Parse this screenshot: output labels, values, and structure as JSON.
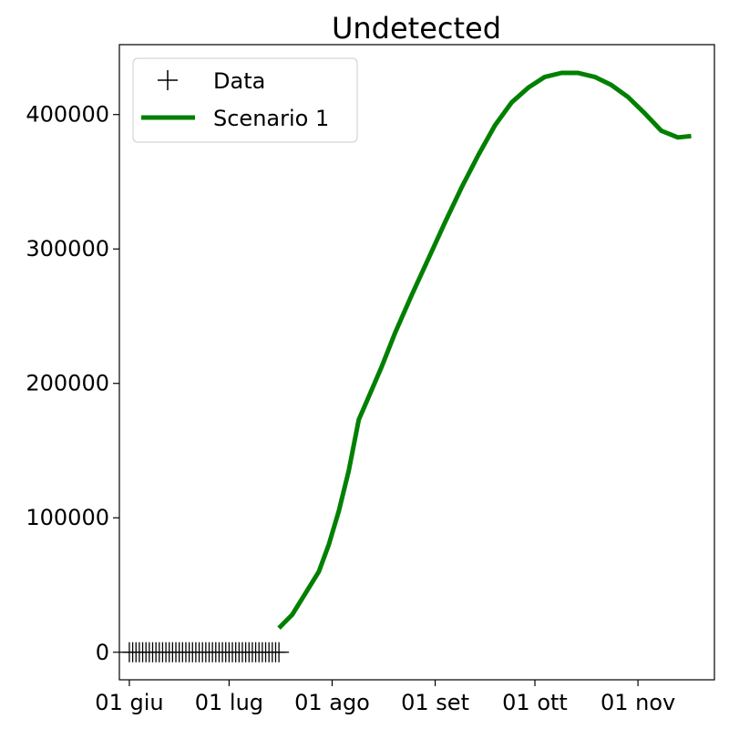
{
  "chart_data": {
    "type": "line",
    "title": "Undetected",
    "xlabel": "",
    "ylabel": "",
    "x_tick_labels": [
      {
        "date": "2020-06-01",
        "label": "01 giu"
      },
      {
        "date": "2020-07-01",
        "label": "01 lug"
      },
      {
        "date": "2020-08-01",
        "label": "01 ago"
      },
      {
        "date": "2020-09-01",
        "label": "01 set"
      },
      {
        "date": "2020-10-01",
        "label": "01 ott"
      },
      {
        "date": "2020-11-01",
        "label": "01 nov"
      }
    ],
    "y_tick_labels": [
      {
        "value": 0,
        "label": "0"
      },
      {
        "value": 100000,
        "label": "100000"
      },
      {
        "value": 200000,
        "label": "200000"
      },
      {
        "value": 300000,
        "label": "300000"
      },
      {
        "value": 400000,
        "label": "400000"
      }
    ],
    "xlim": [
      "2020-05-29",
      "2020-11-24"
    ],
    "ylim": [
      -20500,
      452000
    ],
    "grid": false,
    "legend_position": "top-left",
    "series": [
      {
        "name": "Data",
        "style": "marker-plus",
        "color": "#000000",
        "x": [
          "2020-06-01",
          "2020-06-02",
          "2020-06-03",
          "2020-06-04",
          "2020-06-05",
          "2020-06-06",
          "2020-06-07",
          "2020-06-08",
          "2020-06-09",
          "2020-06-10",
          "2020-06-11",
          "2020-06-12",
          "2020-06-13",
          "2020-06-14",
          "2020-06-15",
          "2020-06-16",
          "2020-06-17",
          "2020-06-18",
          "2020-06-19",
          "2020-06-20",
          "2020-06-21",
          "2020-06-22",
          "2020-06-23",
          "2020-06-24",
          "2020-06-25",
          "2020-06-26",
          "2020-06-27",
          "2020-06-28",
          "2020-06-29",
          "2020-06-30",
          "2020-07-01",
          "2020-07-02",
          "2020-07-03",
          "2020-07-04",
          "2020-07-05",
          "2020-07-06",
          "2020-07-07",
          "2020-07-08",
          "2020-07-09",
          "2020-07-10",
          "2020-07-11",
          "2020-07-12",
          "2020-07-13",
          "2020-07-14",
          "2020-07-15",
          "2020-07-16"
        ],
        "y": [
          0,
          0,
          0,
          0,
          0,
          0,
          0,
          0,
          0,
          0,
          0,
          0,
          0,
          0,
          0,
          0,
          0,
          0,
          0,
          0,
          0,
          0,
          0,
          0,
          0,
          0,
          0,
          0,
          0,
          0,
          0,
          0,
          0,
          0,
          0,
          0,
          0,
          0,
          0,
          0,
          0,
          0,
          0,
          0,
          0,
          0
        ]
      },
      {
        "name": "Scenario 1",
        "style": "line",
        "color": "#008000",
        "x": [
          "2020-07-16",
          "2020-07-20",
          "2020-07-24",
          "2020-07-28",
          "2020-07-31",
          "2020-08-03",
          "2020-08-06",
          "2020-08-09",
          "2020-08-12",
          "2020-08-16",
          "2020-08-20",
          "2020-08-25",
          "2020-08-30",
          "2020-09-04",
          "2020-09-09",
          "2020-09-14",
          "2020-09-19",
          "2020-09-24",
          "2020-09-29",
          "2020-10-04",
          "2020-10-09",
          "2020-10-14",
          "2020-10-19",
          "2020-10-24",
          "2020-10-29",
          "2020-11-03",
          "2020-11-08",
          "2020-11-13",
          "2020-11-17"
        ],
        "y": [
          18000,
          28000,
          44000,
          60000,
          80000,
          105000,
          135000,
          173000,
          190000,
          213000,
          238000,
          266000,
          293000,
          320000,
          346000,
          370000,
          392000,
          409000,
          420000,
          428000,
          431000,
          431000,
          428000,
          422000,
          413000,
          401000,
          388000,
          383000,
          384000
        ]
      }
    ]
  }
}
